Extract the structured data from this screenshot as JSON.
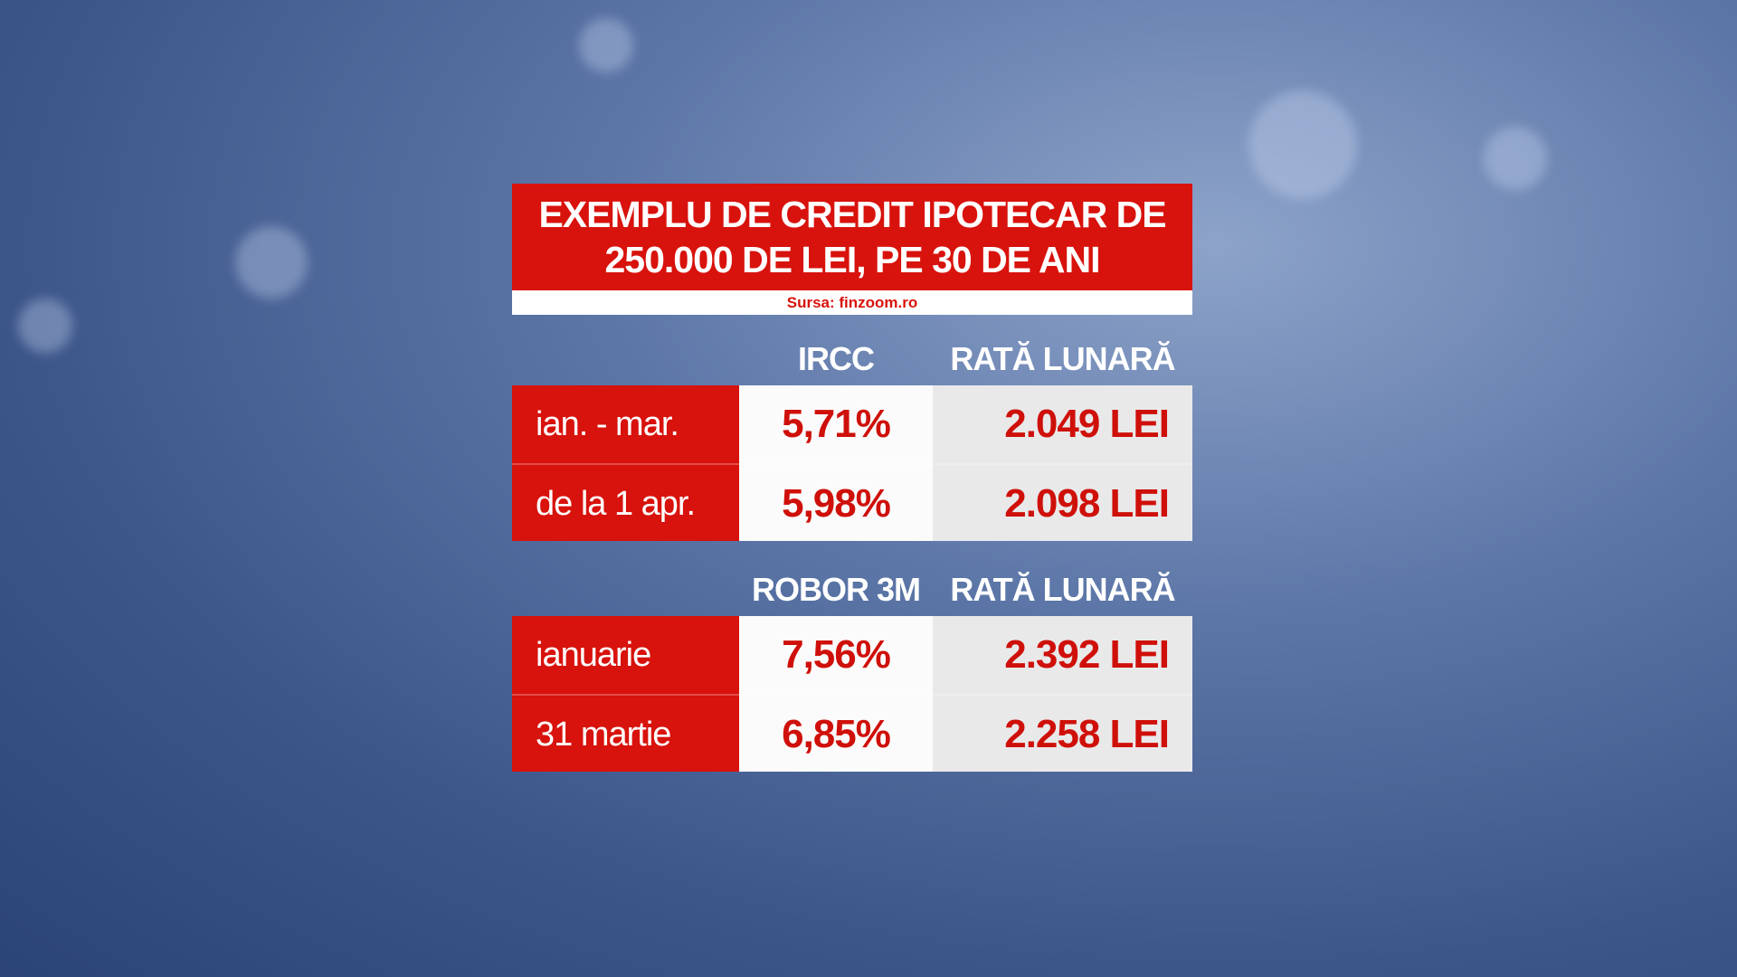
{
  "header": {
    "title_lines": [
      "EXEMPLU DE CREDIT IPOTECAR DE",
      "250.000 DE LEI, PE 30 DE ANI"
    ],
    "source": "Sursa: finzoom.ro"
  },
  "tables": [
    {
      "headers": [
        "IRCC",
        "RATĂ LUNARĂ"
      ],
      "rows": [
        [
          "ian. - mar.",
          "5,71%",
          "2.049 LEI"
        ],
        [
          "de la 1 apr.",
          "5,98%",
          "2.098 LEI"
        ]
      ]
    },
    {
      "headers": [
        "ROBOR 3M",
        "RATĂ LUNARĂ"
      ],
      "rows": [
        [
          "ianuarie",
          "7,56%",
          "2.392 LEI"
        ],
        [
          "31 martie",
          "6,85%",
          "2.258 LEI"
        ]
      ]
    }
  ]
}
